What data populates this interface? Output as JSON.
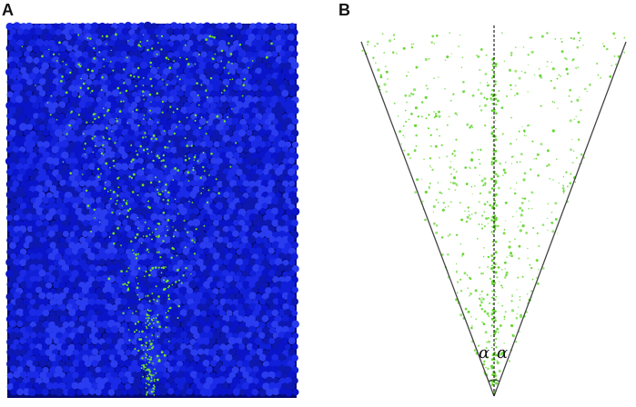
{
  "figure": {
    "panel_a": {
      "label": "A",
      "colors": {
        "particle_base": "#0a14c8",
        "particle_light": "#2a3cf0",
        "particle_dark": "#050a70",
        "tracer": "#6fe22a"
      },
      "icon": "granular-packing-image"
    },
    "panel_b": {
      "label": "B",
      "angle_left": "α",
      "angle_right": "α",
      "colors": {
        "tracer": "#5fd42a",
        "cone_line": "#444444",
        "axis_line": "#222222"
      },
      "icon": "cone-spread-diagram"
    }
  }
}
